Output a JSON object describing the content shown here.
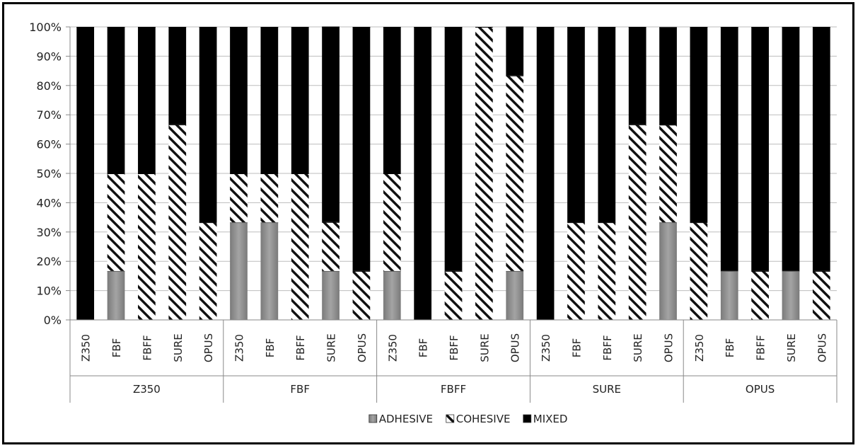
{
  "chart_data": {
    "type": "bar",
    "stacked": true,
    "percent": true,
    "ylim": [
      0,
      100
    ],
    "yticks": [
      "0%",
      "10%",
      "20%",
      "30%",
      "40%",
      "50%",
      "60%",
      "70%",
      "80%",
      "90%",
      "100%"
    ],
    "grid": true,
    "legend_position": "bottom",
    "groups": [
      {
        "name": "Z350",
        "categories": [
          "Z350",
          "FBF",
          "FBFF",
          "SURE",
          "OPUS"
        ]
      },
      {
        "name": "FBF",
        "categories": [
          "Z350",
          "FBF",
          "FBFF",
          "SURE",
          "OPUS"
        ]
      },
      {
        "name": "FBFF",
        "categories": [
          "Z350",
          "FBF",
          "FBFF",
          "SURE",
          "OPUS"
        ]
      },
      {
        "name": "SURE",
        "categories": [
          "Z350",
          "FBF",
          "FBFF",
          "SURE",
          "OPUS"
        ]
      },
      {
        "name": "OPUS",
        "categories": [
          "Z350",
          "FBF",
          "FBFF",
          "SURE",
          "OPUS"
        ]
      }
    ],
    "series": [
      {
        "name": "ADHESIVE",
        "color": "#8c8c8c",
        "pattern": "solid-gray",
        "values": [
          0,
          16.7,
          0,
          0,
          0,
          33.3,
          33.3,
          0,
          16.7,
          0,
          16.7,
          0,
          0,
          0,
          16.7,
          0,
          0,
          0,
          0,
          33.3,
          0,
          16.7,
          0,
          16.7,
          0
        ]
      },
      {
        "name": "COHESIVE",
        "color": "#000000",
        "pattern": "diagonal-hatch",
        "values": [
          0,
          33.3,
          50,
          66.7,
          33.3,
          16.7,
          16.7,
          50,
          16.7,
          16.7,
          33.3,
          0,
          16.7,
          100,
          66.7,
          0,
          33.3,
          33.3,
          66.7,
          33.3,
          33.3,
          0,
          16.7,
          0,
          16.7
        ]
      },
      {
        "name": "MIXED",
        "color": "#000000",
        "pattern": "solid-black",
        "values": [
          100,
          50,
          50,
          33.3,
          66.7,
          50,
          50,
          50,
          66.7,
          83.3,
          50,
          100,
          83.3,
          0,
          16.7,
          100,
          66.7,
          66.7,
          33.3,
          33.3,
          66.7,
          83.3,
          83.3,
          83.3,
          83.3
        ]
      }
    ]
  }
}
